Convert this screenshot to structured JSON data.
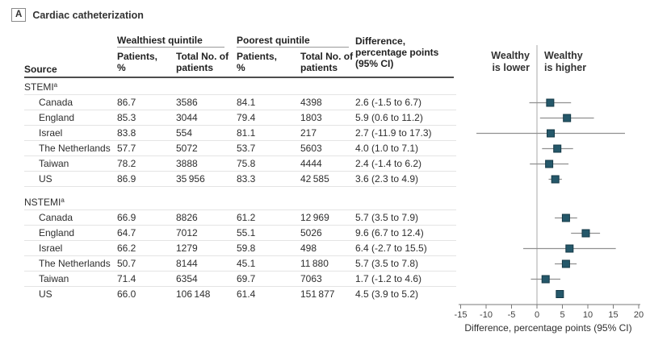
{
  "panel": {
    "letter": "A",
    "title": "Cardiac catheterization"
  },
  "table": {
    "source_header": "Source",
    "groups": [
      {
        "label": "Wealthiest quintile",
        "sub": [
          "Patients, %",
          "Total No. of patients"
        ]
      },
      {
        "label": "Poorest quintile",
        "sub": [
          "Patients, %",
          "Total No. of patients"
        ]
      }
    ],
    "difference_header": "Difference, percentage points (95% CI)",
    "sections": [
      {
        "label": "STEMI",
        "footnote_mark": "a",
        "rows": [
          {
            "source": "Canada",
            "wealthiest_pct": "86.7",
            "wealthiest_total": "3586",
            "poorest_pct": "84.1",
            "poorest_total": "4398",
            "difference": "2.6 (-1.5 to 6.7)"
          },
          {
            "source": "England",
            "wealthiest_pct": "85.3",
            "wealthiest_total": "3044",
            "poorest_pct": "79.4",
            "poorest_total": "1803",
            "difference": "5.9 (0.6 to 11.2)"
          },
          {
            "source": "Israel",
            "wealthiest_pct": "83.8",
            "wealthiest_total": "554",
            "poorest_pct": "81.1",
            "poorest_total": "217",
            "difference": "2.7 (-11.9 to 17.3)"
          },
          {
            "source": "The Netherlands",
            "wealthiest_pct": "57.7",
            "wealthiest_total": "5072",
            "poorest_pct": "53.7",
            "poorest_total": "5603",
            "difference": "4.0 (1.0 to 7.1)"
          },
          {
            "source": "Taiwan",
            "wealthiest_pct": "78.2",
            "wealthiest_total": "3888",
            "poorest_pct": "75.8",
            "poorest_total": "4444",
            "difference": "2.4 (-1.4 to 6.2)"
          },
          {
            "source": "US",
            "wealthiest_pct": "86.9",
            "wealthiest_total": "35 956",
            "poorest_pct": "83.3",
            "poorest_total": "42 585",
            "difference": "3.6 (2.3 to 4.9)"
          }
        ]
      },
      {
        "label": "NSTEMI",
        "footnote_mark": "a",
        "rows": [
          {
            "source": "Canada",
            "wealthiest_pct": "66.9",
            "wealthiest_total": "8826",
            "poorest_pct": "61.2",
            "poorest_total": "12 969",
            "difference": "5.7 (3.5 to 7.9)"
          },
          {
            "source": "England",
            "wealthiest_pct": "64.7",
            "wealthiest_total": "7012",
            "poorest_pct": "55.1",
            "poorest_total": "5026",
            "difference": "9.6 (6.7 to 12.4)"
          },
          {
            "source": "Israel",
            "wealthiest_pct": "66.2",
            "wealthiest_total": "1279",
            "poorest_pct": "59.8",
            "poorest_total": "498",
            "difference": "6.4 (-2.7 to 15.5)"
          },
          {
            "source": "The Netherlands",
            "wealthiest_pct": "50.7",
            "wealthiest_total": "8144",
            "poorest_pct": "45.1",
            "poorest_total": "11 880",
            "difference": "5.7 (3.5 to 7.8)"
          },
          {
            "source": "Taiwan",
            "wealthiest_pct": "71.4",
            "wealthiest_total": "6354",
            "poorest_pct": "69.7",
            "poorest_total": "7063",
            "difference": "1.7 (-1.2 to 4.6)"
          },
          {
            "source": "US",
            "wealthiest_pct": "66.0",
            "wealthiest_total": "106 148",
            "poorest_pct": "61.4",
            "poorest_total": "151 877",
            "difference": "4.5 (3.9 to 5.2)"
          }
        ]
      }
    ]
  },
  "chart_data": {
    "type": "scatter",
    "variant": "forest-plot",
    "title": "",
    "xlabel": "Difference, percentage points (95% CI)",
    "ylabel": "",
    "xlim": [
      -15,
      20
    ],
    "xticks": [
      -15,
      -10,
      -5,
      0,
      5,
      10,
      15,
      20
    ],
    "reference_line_x": 0,
    "left_label_lines": [
      "Wealthy",
      "is lower"
    ],
    "right_label_lines": [
      "Wealthy",
      "is higher"
    ],
    "marker_color": "#25586a",
    "marker_edge_color": "#143846",
    "ci_color": "#909090",
    "series": [
      {
        "name": "STEMI",
        "points": [
          {
            "label": "Canada",
            "est": 2.6,
            "lo": -1.5,
            "hi": 6.7
          },
          {
            "label": "England",
            "est": 5.9,
            "lo": 0.6,
            "hi": 11.2
          },
          {
            "label": "Israel",
            "est": 2.7,
            "lo": -11.9,
            "hi": 17.3
          },
          {
            "label": "The Netherlands",
            "est": 4.0,
            "lo": 1.0,
            "hi": 7.1
          },
          {
            "label": "Taiwan",
            "est": 2.4,
            "lo": -1.4,
            "hi": 6.2
          },
          {
            "label": "US",
            "est": 3.6,
            "lo": 2.3,
            "hi": 4.9
          }
        ]
      },
      {
        "name": "NSTEMI",
        "points": [
          {
            "label": "Canada",
            "est": 5.7,
            "lo": 3.5,
            "hi": 7.9
          },
          {
            "label": "England",
            "est": 9.6,
            "lo": 6.7,
            "hi": 12.4
          },
          {
            "label": "Israel",
            "est": 6.4,
            "lo": -2.7,
            "hi": 15.5
          },
          {
            "label": "The Netherlands",
            "est": 5.7,
            "lo": 3.5,
            "hi": 7.8
          },
          {
            "label": "Taiwan",
            "est": 1.7,
            "lo": -1.2,
            "hi": 4.6
          },
          {
            "label": "US",
            "est": 4.5,
            "lo": 3.9,
            "hi": 5.2
          }
        ]
      }
    ]
  }
}
